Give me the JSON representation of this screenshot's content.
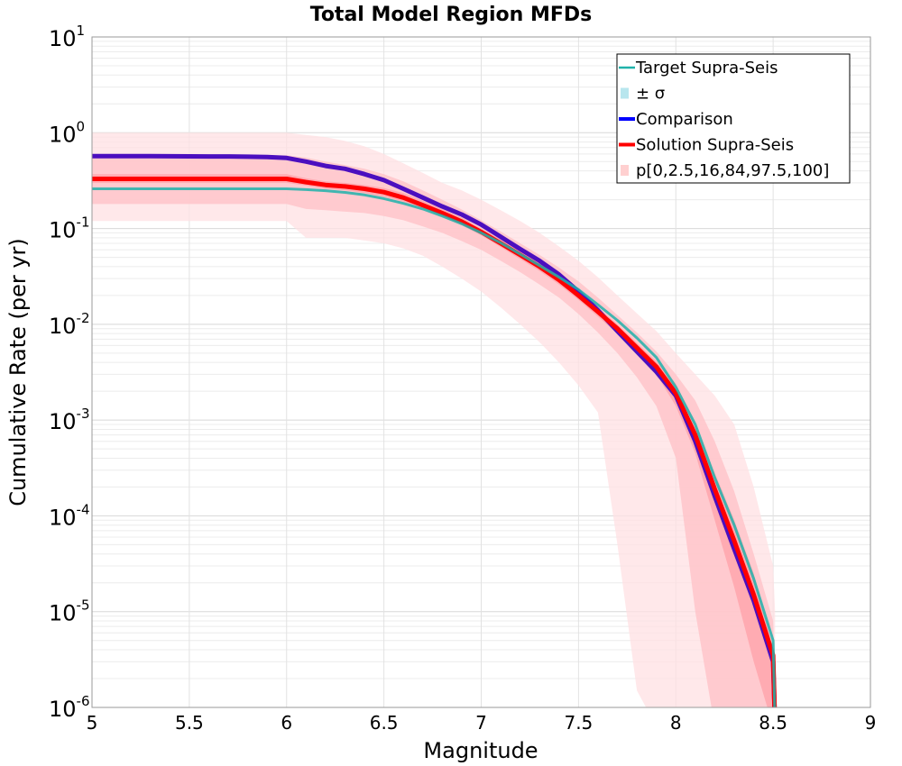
{
  "chart_data": {
    "type": "line",
    "title": "Total Model Region MFDs",
    "xlabel": "Magnitude",
    "ylabel": "Cumulative Rate (per yr)",
    "xlim": [
      5,
      9
    ],
    "ylim": [
      1e-06,
      10
    ],
    "yscale": "log",
    "x_ticks": [
      "5",
      "5.5",
      "6",
      "6.5",
      "7",
      "7.5",
      "8",
      "8.5",
      "9"
    ],
    "y_ticks": [
      {
        "base": "10",
        "exp": "-6"
      },
      {
        "base": "10",
        "exp": "-5"
      },
      {
        "base": "10",
        "exp": "-4"
      },
      {
        "base": "10",
        "exp": "-3"
      },
      {
        "base": "10",
        "exp": "-2"
      },
      {
        "base": "10",
        "exp": "-1"
      },
      {
        "base": "10",
        "exp": "0"
      },
      {
        "base": "10",
        "exp": "1"
      }
    ],
    "grid": true,
    "legend_position": "top-right",
    "legend": [
      {
        "label": "Target Supra-Seis",
        "color": "#20b2aa",
        "kind": "line"
      },
      {
        "label": "± σ",
        "color": "#b8e6ee",
        "kind": "box"
      },
      {
        "label": "Comparison",
        "color": "#0000ff",
        "kind": "thickline"
      },
      {
        "label": "Solution Supra-Seis",
        "color": "#ff0000",
        "kind": "thickline"
      },
      {
        "label": "p[0,2.5,16,84,97.5,100]",
        "color": "#ffd0d0",
        "kind": "box"
      }
    ],
    "x": [
      5.0,
      5.1,
      5.2,
      5.3,
      5.4,
      5.5,
      5.6,
      5.7,
      5.8,
      5.9,
      6.0,
      6.1,
      6.2,
      6.3,
      6.4,
      6.5,
      6.6,
      6.7,
      6.8,
      6.9,
      7.0,
      7.1,
      7.2,
      7.3,
      7.4,
      7.5,
      7.6,
      7.7,
      7.8,
      7.9,
      8.0,
      8.1,
      8.2,
      8.3,
      8.4,
      8.5,
      8.51
    ],
    "series": [
      {
        "name": "Target Supra-Seis",
        "color": "#20b2aa",
        "values": [
          0.26,
          0.26,
          0.26,
          0.26,
          0.26,
          0.26,
          0.26,
          0.26,
          0.26,
          0.26,
          0.26,
          0.255,
          0.248,
          0.238,
          0.224,
          0.205,
          0.183,
          0.16,
          0.135,
          0.112,
          0.09,
          0.071,
          0.054,
          0.041,
          0.031,
          0.023,
          0.016,
          0.011,
          0.0072,
          0.0045,
          0.0022,
          0.0009,
          0.00025,
          8e-05,
          2.2e-05,
          5e-06,
          5e-07
        ]
      },
      {
        "name": "Comparison",
        "color": "#4b0fbf",
        "values": [
          0.57,
          0.57,
          0.57,
          0.57,
          0.568,
          0.567,
          0.566,
          0.565,
          0.562,
          0.558,
          0.545,
          0.5,
          0.45,
          0.42,
          0.37,
          0.32,
          0.26,
          0.21,
          0.17,
          0.14,
          0.11,
          0.082,
          0.061,
          0.046,
          0.033,
          0.022,
          0.014,
          0.0085,
          0.0052,
          0.0032,
          0.0018,
          0.0006,
          0.00016,
          4.5e-05,
          1.3e-05,
          3e-06,
          5e-07
        ]
      },
      {
        "name": "Solution Supra-Seis",
        "color": "#ff0000",
        "values": [
          0.33,
          0.33,
          0.33,
          0.33,
          0.33,
          0.33,
          0.33,
          0.33,
          0.33,
          0.33,
          0.33,
          0.305,
          0.285,
          0.275,
          0.26,
          0.24,
          0.21,
          0.175,
          0.145,
          0.118,
          0.092,
          0.07,
          0.053,
          0.04,
          0.029,
          0.02,
          0.0135,
          0.009,
          0.0057,
          0.0036,
          0.0019,
          0.0007,
          0.00019,
          5.5e-05,
          1.5e-05,
          3.5e-06,
          5e-07
        ]
      }
    ],
    "bands": [
      {
        "name": "p0-100",
        "color": "#ffe0e3",
        "lower": [
          0.12,
          0.12,
          0.12,
          0.12,
          0.12,
          0.12,
          0.12,
          0.12,
          0.12,
          0.12,
          0.12,
          0.08,
          0.08,
          0.08,
          0.075,
          0.07,
          0.062,
          0.052,
          0.04,
          0.03,
          0.022,
          0.015,
          0.01,
          0.0065,
          0.004,
          0.0023,
          0.0012,
          5e-05,
          1.5e-06,
          5e-07,
          5e-07,
          5e-07,
          5e-07,
          5e-07,
          5e-07,
          5e-07,
          5e-07
        ],
        "upper": [
          1.0,
          1.0,
          1.0,
          1.0,
          1.0,
          1.0,
          1.0,
          1.0,
          1.0,
          1.0,
          1.0,
          0.95,
          0.9,
          0.82,
          0.72,
          0.6,
          0.48,
          0.38,
          0.3,
          0.25,
          0.2,
          0.155,
          0.12,
          0.09,
          0.065,
          0.046,
          0.031,
          0.02,
          0.013,
          0.0085,
          0.005,
          0.003,
          0.0018,
          0.0009,
          0.0002,
          3e-05,
          1e-05
        ]
      },
      {
        "name": "p16-84",
        "color": "#ffc0c6",
        "lower": [
          0.18,
          0.18,
          0.18,
          0.18,
          0.18,
          0.18,
          0.18,
          0.18,
          0.18,
          0.18,
          0.18,
          0.16,
          0.155,
          0.15,
          0.145,
          0.135,
          0.122,
          0.105,
          0.09,
          0.074,
          0.06,
          0.046,
          0.035,
          0.026,
          0.019,
          0.0128,
          0.0082,
          0.005,
          0.0028,
          0.0014,
          0.0004,
          1e-05,
          5e-07,
          5e-07,
          5e-07,
          5e-07,
          5e-07
        ],
        "upper": [
          0.58,
          0.58,
          0.58,
          0.58,
          0.58,
          0.58,
          0.58,
          0.58,
          0.58,
          0.58,
          0.58,
          0.55,
          0.5,
          0.46,
          0.42,
          0.37,
          0.31,
          0.25,
          0.2,
          0.158,
          0.122,
          0.093,
          0.07,
          0.053,
          0.039,
          0.028,
          0.019,
          0.0125,
          0.0082,
          0.0052,
          0.003,
          0.0016,
          0.0006,
          0.00018,
          4e-05,
          8e-06,
          2e-06
        ]
      },
      {
        "name": "p2.5-97.5",
        "color": "#ffa0a8",
        "lower": [
          0.3,
          0.3,
          0.3,
          0.3,
          0.3,
          0.3,
          0.3,
          0.3,
          0.3,
          0.3,
          0.3,
          0.28,
          0.26,
          0.25,
          0.235,
          0.215,
          0.19,
          0.16,
          0.133,
          0.108,
          0.085,
          0.064,
          0.048,
          0.036,
          0.026,
          0.018,
          0.012,
          0.008,
          0.005,
          0.003,
          0.0014,
          0.00045,
          9e-05,
          1.8e-05,
          3e-06,
          5e-07,
          5e-07
        ],
        "upper": [
          0.37,
          0.37,
          0.37,
          0.37,
          0.37,
          0.37,
          0.37,
          0.37,
          0.37,
          0.37,
          0.37,
          0.335,
          0.31,
          0.3,
          0.285,
          0.265,
          0.235,
          0.195,
          0.16,
          0.13,
          0.1,
          0.077,
          0.058,
          0.044,
          0.032,
          0.022,
          0.015,
          0.01,
          0.0064,
          0.0041,
          0.0024,
          0.0009,
          0.00028,
          9e-05,
          2.5e-05,
          4e-06,
          1e-06
        ]
      }
    ]
  }
}
